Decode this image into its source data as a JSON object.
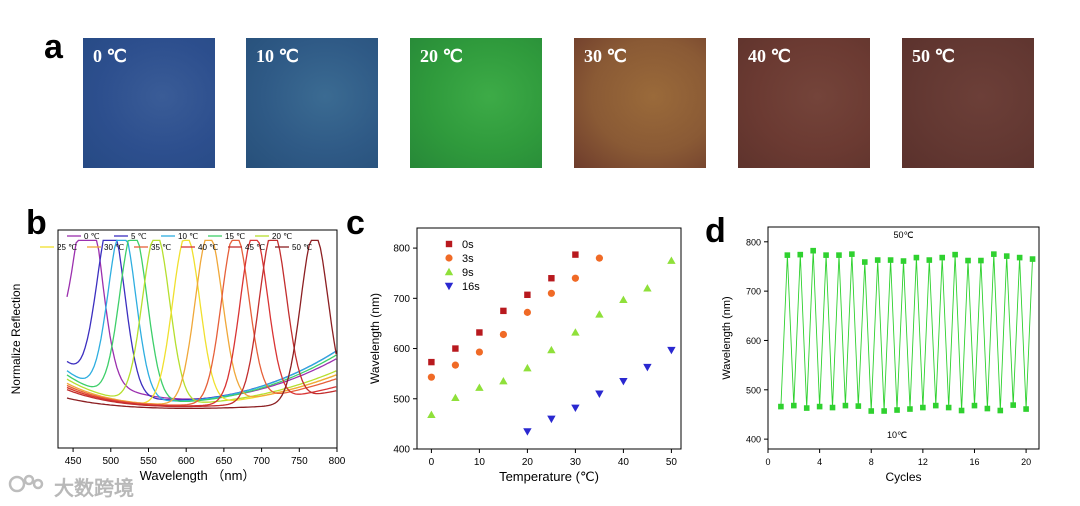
{
  "panel_a": {
    "letter": "a",
    "swatches": [
      {
        "label": "0 ℃",
        "colors": [
          "#2d4f8e",
          "#3a5c97",
          "#264a84"
        ]
      },
      {
        "label": "10 ℃",
        "colors": [
          "#2f5a86",
          "#3b6b92",
          "#27507a"
        ]
      },
      {
        "label": "20 ℃",
        "colors": [
          "#2f9a3c",
          "#3dab47",
          "#278838"
        ]
      },
      {
        "label": "30 ℃",
        "colors": [
          "#8a5a35",
          "#9a6a3a",
          "#6e3c2c"
        ]
      },
      {
        "label": "40 ℃",
        "colors": [
          "#6b3a32",
          "#74443a",
          "#5e332c"
        ]
      },
      {
        "label": "50 ℃",
        "colors": [
          "#633832",
          "#6c3f38",
          "#5a312c"
        ]
      }
    ]
  },
  "panel_b": {
    "letter": "b"
  },
  "panel_c": {
    "letter": "c"
  },
  "panel_d": {
    "letter": "d"
  },
  "watermark": {
    "text": "大数跨境"
  },
  "chart_data": [
    {
      "type": "line",
      "panel": "b",
      "xlabel": "Wavelength （nm）",
      "ylabel": "Normalize Reflection",
      "xlim": [
        430,
        800
      ],
      "xticks": [
        450,
        500,
        550,
        600,
        650,
        700,
        750,
        800
      ],
      "legend_placement": "top",
      "series": [
        {
          "name": "0 ℃",
          "color": "#9b2fae",
          "peak": 470,
          "left_base": 0.6,
          "right_base": 0.26
        },
        {
          "name": "5 ℃",
          "color": "#3c2fc0",
          "peak": 500,
          "left_base": 0.46,
          "right_base": 0.3
        },
        {
          "name": "10 ℃",
          "color": "#2eaee0",
          "peak": 515,
          "left_base": 0.38,
          "right_base": 0.3
        },
        {
          "name": "15 ℃",
          "color": "#3ecf6a",
          "peak": 530,
          "left_base": 0.34,
          "right_base": 0.28
        },
        {
          "name": "20 ℃",
          "color": "#b6df2e",
          "peak": 560,
          "left_base": 0.3,
          "right_base": 0.2
        },
        {
          "name": "25 ℃",
          "color": "#f0e02e",
          "peak": 600,
          "left_base": 0.22,
          "right_base": 0.18
        },
        {
          "name": "30 ℃",
          "color": "#f0a83a",
          "peak": 630,
          "left_base": 0.26,
          "right_base": 0.18
        },
        {
          "name": "35 ℃",
          "color": "#e6603a",
          "peak": 665,
          "left_base": 0.24,
          "right_base": 0.16
        },
        {
          "name": "40 ℃",
          "color": "#d93434",
          "peak": 690,
          "left_base": 0.22,
          "right_base": 0.12
        },
        {
          "name": "45 ℃",
          "color": "#c22e2e",
          "peak": 715,
          "left_base": 0.2,
          "right_base": 0.1
        },
        {
          "name": "50 ℃",
          "color": "#8c1f22",
          "peak": 770,
          "left_base": 0.12,
          "right_base": 0.05
        }
      ]
    },
    {
      "type": "scatter",
      "panel": "c",
      "xlabel": "Temperature (℃)",
      "ylabel": "Wavelength (nm)",
      "xlim": [
        -3,
        52
      ],
      "ylim": [
        400,
        840
      ],
      "xticks": [
        0,
        10,
        20,
        30,
        40,
        50
      ],
      "yticks": [
        400,
        500,
        600,
        700,
        800
      ],
      "legend_placement": "top-left",
      "series": [
        {
          "name": "0s",
          "color": "#b8191e",
          "marker": "square",
          "x": [
            0,
            5,
            10,
            15,
            20,
            25,
            30
          ],
          "y": [
            573,
            600,
            632,
            675,
            707,
            740,
            787
          ]
        },
        {
          "name": "3s",
          "color": "#f06a26",
          "marker": "circle",
          "x": [
            0,
            5,
            10,
            15,
            20,
            25,
            30,
            35
          ],
          "y": [
            543,
            567,
            593,
            628,
            672,
            710,
            740,
            780
          ]
        },
        {
          "name": "9s",
          "color": "#8fe03a",
          "marker": "triangle-up",
          "x": [
            0,
            5,
            10,
            15,
            20,
            25,
            30,
            35,
            40,
            45,
            50
          ],
          "y": [
            468,
            502,
            522,
            535,
            561,
            597,
            632,
            668,
            697,
            720,
            775
          ]
        },
        {
          "name": "16s",
          "color": "#2a28d0",
          "marker": "triangle-down",
          "x": [
            20,
            25,
            30,
            35,
            40,
            45,
            50
          ],
          "y": [
            435,
            460,
            482,
            510,
            535,
            563,
            597
          ]
        }
      ]
    },
    {
      "type": "line",
      "panel": "d",
      "xlabel": "Cycles",
      "ylabel": "Wavelength (nm)",
      "xlim": [
        0,
        21
      ],
      "ylim": [
        380,
        830
      ],
      "xticks": [
        0,
        4,
        8,
        12,
        16,
        20
      ],
      "yticks": [
        400,
        500,
        600,
        700,
        800
      ],
      "annotations": [
        {
          "text": "50℃",
          "x": 10.5,
          "y": 808
        },
        {
          "text": "10℃",
          "x": 10.0,
          "y": 402
        }
      ],
      "series": [
        {
          "name": "",
          "color": "#2fd12f",
          "marker": "square",
          "x": [
            1.0,
            1.5,
            2.0,
            2.5,
            3.0,
            3.5,
            4.0,
            4.5,
            5.0,
            5.5,
            6.0,
            6.5,
            7.0,
            7.5,
            8.0,
            8.5,
            9.0,
            9.5,
            10.0,
            10.5,
            11.0,
            11.5,
            12.0,
            12.5,
            13.0,
            13.5,
            14.0,
            14.5,
            15.0,
            15.5,
            16.0,
            16.5,
            17.0,
            17.5,
            18.0,
            18.5,
            19.0,
            19.5,
            20.0,
            20.5
          ],
          "y": [
            466,
            773,
            468,
            774,
            463,
            782,
            466,
            773,
            464,
            773,
            468,
            775,
            467,
            759,
            457,
            763,
            457,
            763,
            459,
            761,
            461,
            768,
            464,
            763,
            468,
            768,
            464,
            774,
            458,
            762,
            468,
            762,
            462,
            775,
            458,
            771,
            469,
            768,
            461,
            765
          ]
        }
      ]
    }
  ]
}
